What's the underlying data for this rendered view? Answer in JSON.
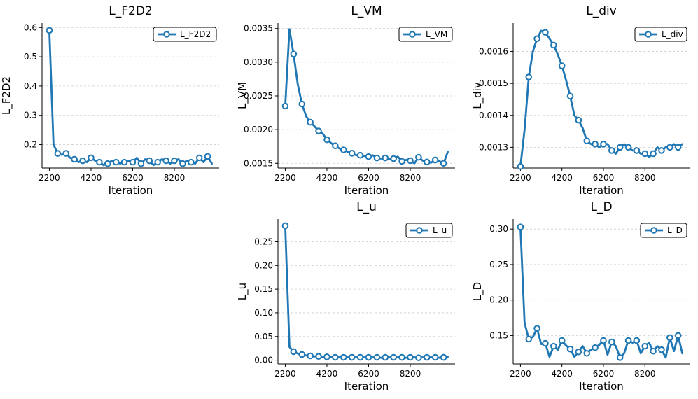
{
  "figure": {
    "x_label": "Iteration",
    "x_ticks": [
      2200,
      4200,
      6200,
      8200
    ],
    "x": [
      2200,
      2400,
      2600,
      2800,
      3000,
      3200,
      3400,
      3600,
      3800,
      4000,
      4200,
      4400,
      4600,
      4800,
      5000,
      5200,
      5400,
      5600,
      5800,
      6000,
      6200,
      6400,
      6600,
      6800,
      7000,
      7200,
      7400,
      7600,
      7800,
      8000,
      8200,
      8400,
      8600,
      8800,
      9000,
      9200,
      9400,
      9600,
      9800,
      10000
    ],
    "marker_every": 2,
    "line_color": "#1f77b4"
  },
  "chart_data": [
    {
      "type": "line",
      "title": "L_F2D2",
      "xlabel": "Iteration",
      "ylabel": "L_F2D2",
      "legend": "L_F2D2",
      "legend_position": "top-right",
      "ylim": [
        0.12,
        0.615
      ],
      "yticks": [
        0.2,
        0.3,
        0.4,
        0.5,
        0.6
      ],
      "tick_format": 1,
      "values": [
        0.59,
        0.2,
        0.17,
        0.165,
        0.17,
        0.155,
        0.15,
        0.14,
        0.145,
        0.14,
        0.155,
        0.145,
        0.14,
        0.13,
        0.135,
        0.145,
        0.14,
        0.135,
        0.14,
        0.145,
        0.14,
        0.155,
        0.135,
        0.15,
        0.145,
        0.13,
        0.14,
        0.15,
        0.145,
        0.135,
        0.145,
        0.15,
        0.135,
        0.145,
        0.14,
        0.135,
        0.155,
        0.14,
        0.16,
        0.135
      ]
    },
    {
      "type": "line",
      "title": "L_VM",
      "xlabel": "Iteration",
      "ylabel": "L_VM",
      "legend": "L_VM",
      "legend_position": "top-right",
      "ylim": [
        0.00143,
        0.00358
      ],
      "yticks": [
        0.0015,
        0.002,
        0.0025,
        0.003,
        0.0035
      ],
      "tick_format": 4,
      "values": [
        0.00235,
        0.00349,
        0.00312,
        0.00267,
        0.00238,
        0.0022,
        0.00211,
        0.00205,
        0.00198,
        0.00194,
        0.00185,
        0.0018,
        0.00176,
        0.00172,
        0.0017,
        0.00167,
        0.00165,
        0.00162,
        0.00162,
        0.00161,
        0.0016,
        0.00162,
        0.00158,
        0.00157,
        0.00158,
        0.00156,
        0.00157,
        0.0016,
        0.00153,
        0.00155,
        0.00154,
        0.0015,
        0.00159,
        0.00154,
        0.00152,
        0.00151,
        0.00155,
        0.00153,
        0.0015,
        0.00167
      ]
    },
    {
      "type": "line",
      "title": "L_div",
      "xlabel": "Iteration",
      "ylabel": "L_div",
      "legend": "L_div",
      "legend_position": "top-right",
      "ylim": [
        0.001235,
        0.001689
      ],
      "yticks": [
        0.0013,
        0.0014,
        0.0015,
        0.0016
      ],
      "tick_format": 4,
      "values": [
        0.00124,
        0.001355,
        0.00152,
        0.0016,
        0.00164,
        0.001665,
        0.00166,
        0.00164,
        0.00162,
        0.00159,
        0.001555,
        0.00151,
        0.00146,
        0.0014,
        0.001385,
        0.00136,
        0.00132,
        0.00131,
        0.00131,
        0.0013,
        0.00131,
        0.00131,
        0.00129,
        0.00128,
        0.0013,
        0.00131,
        0.0013,
        0.00129,
        0.00129,
        0.00128,
        0.00128,
        0.00127,
        0.00128,
        0.0013,
        0.00129,
        0.0013,
        0.0013,
        0.00131,
        0.0013,
        0.00131
      ]
    },
    {
      "type": "line",
      "title": "L_u",
      "xlabel": "Iteration",
      "ylabel": "L_u",
      "legend": "L_u",
      "legend_position": "top-right",
      "ylim": [
        -0.008,
        0.298
      ],
      "yticks": [
        0.0,
        0.05,
        0.1,
        0.15,
        0.2,
        0.25
      ],
      "tick_format": 2,
      "values": [
        0.284,
        0.028,
        0.018,
        0.014,
        0.012,
        0.01,
        0.009,
        0.008,
        0.008,
        0.007,
        0.007,
        0.007,
        0.006,
        0.006,
        0.006,
        0.006,
        0.006,
        0.006,
        0.006,
        0.006,
        0.006,
        0.006,
        0.006,
        0.005,
        0.006,
        0.006,
        0.006,
        0.006,
        0.006,
        0.005,
        0.006,
        0.006,
        0.005,
        0.006,
        0.006,
        0.006,
        0.006,
        0.005,
        0.006,
        0.007
      ]
    },
    {
      "type": "line",
      "title": "L_D",
      "xlabel": "Iteration",
      "ylabel": "L_D",
      "legend": "L_D",
      "legend_position": "top-right",
      "ylim": [
        0.11,
        0.314
      ],
      "yticks": [
        0.15,
        0.2,
        0.25,
        0.3
      ],
      "tick_format": 2,
      "values": [
        0.303,
        0.168,
        0.145,
        0.148,
        0.16,
        0.138,
        0.139,
        0.12,
        0.135,
        0.13,
        0.143,
        0.136,
        0.131,
        0.12,
        0.127,
        0.135,
        0.125,
        0.13,
        0.133,
        0.137,
        0.143,
        0.123,
        0.141,
        0.135,
        0.119,
        0.125,
        0.143,
        0.14,
        0.143,
        0.125,
        0.135,
        0.14,
        0.128,
        0.135,
        0.13,
        0.119,
        0.147,
        0.128,
        0.15,
        0.125
      ]
    }
  ]
}
